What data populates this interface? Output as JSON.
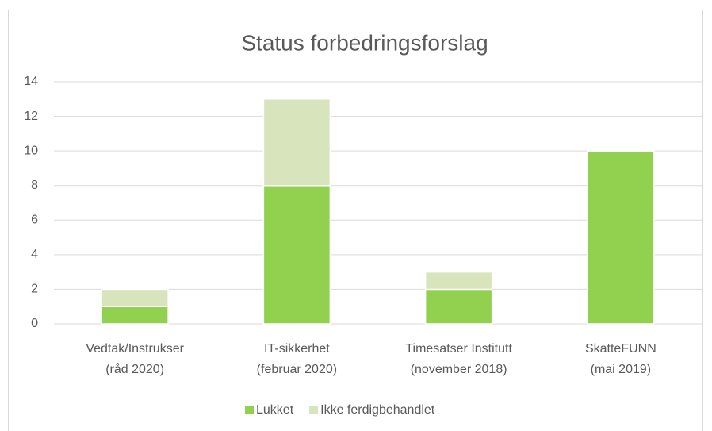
{
  "chart_data": {
    "type": "stacked_bar",
    "title": "Status forbedringsforslag",
    "categories": [
      [
        "Vedtak/Instrukser",
        "(råd 2020)"
      ],
      [
        "IT-sikkerhet",
        "(februar 2020)"
      ],
      [
        "Timesatser Institutt",
        "(november 2018)"
      ],
      [
        "SkatteFUNN",
        "(mai 2019)"
      ]
    ],
    "series": [
      {
        "name": "Lukket",
        "color": "#92d050",
        "values": [
          1,
          8,
          2,
          10
        ]
      },
      {
        "name": "Ikke ferdigbehandlet",
        "color": "#d8e4bc",
        "values": [
          1,
          5,
          1,
          0
        ]
      }
    ],
    "ylim": [
      0,
      14
    ],
    "yticks": [
      0,
      2,
      4,
      6,
      8,
      10,
      12,
      14
    ],
    "grid": true,
    "legend": "bottom"
  }
}
